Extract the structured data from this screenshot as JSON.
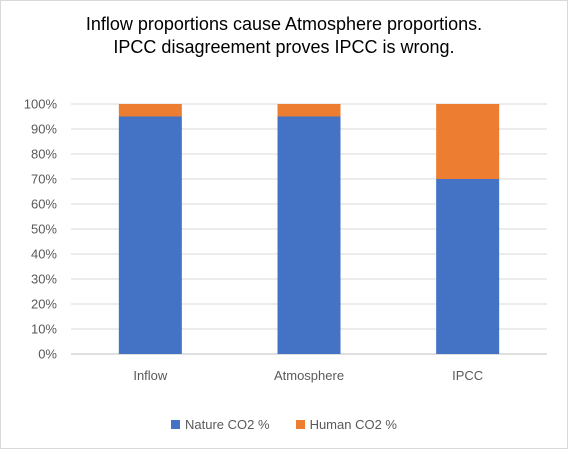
{
  "chart_data": {
    "type": "bar",
    "stacked": true,
    "title_lines": [
      "Inflow proportions cause Atmosphere proportions.",
      "IPCC disagreement proves IPCC is wrong."
    ],
    "categories": [
      "Inflow",
      "Atmosphere",
      "IPCC"
    ],
    "series": [
      {
        "name": "Nature CO2 %",
        "values": [
          95,
          95,
          70
        ],
        "color": "#4472C4"
      },
      {
        "name": "Human CO2 %",
        "values": [
          5,
          5,
          30
        ],
        "color": "#ED7D31"
      }
    ],
    "ylim": [
      0,
      100
    ],
    "yticks": [
      "0%",
      "10%",
      "20%",
      "30%",
      "40%",
      "50%",
      "60%",
      "70%",
      "80%",
      "90%",
      "100%"
    ],
    "grid": true,
    "legend_position": "bottom"
  }
}
